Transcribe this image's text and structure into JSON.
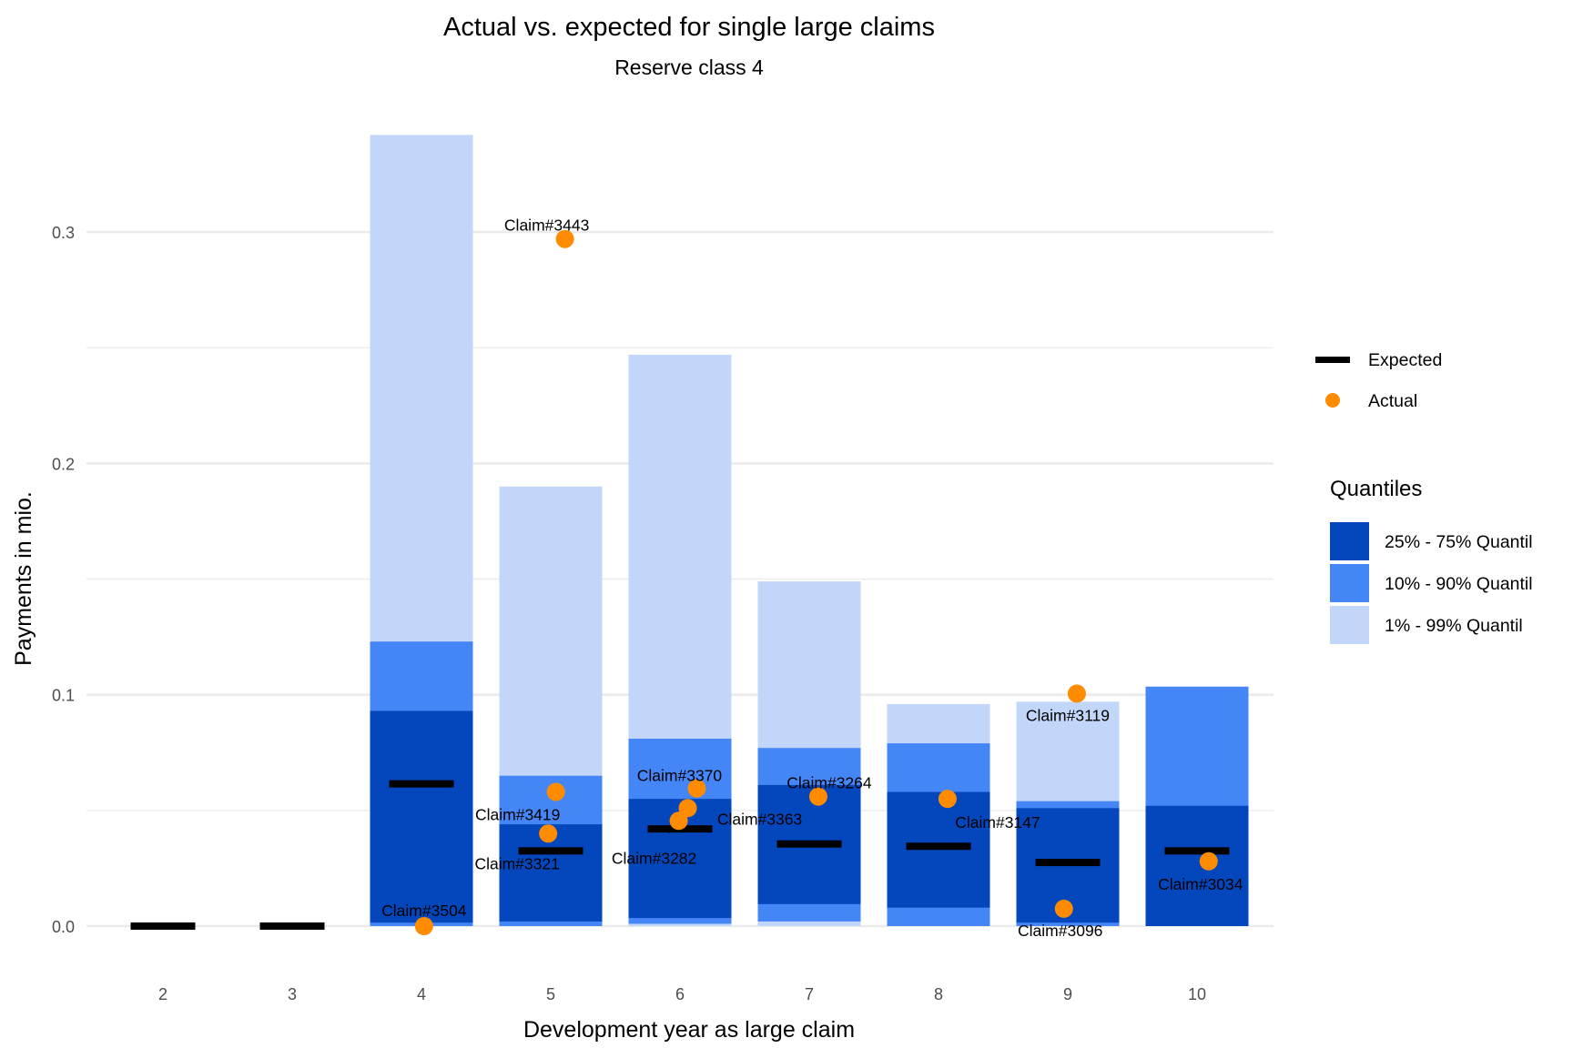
{
  "chart_data": {
    "type": "bar",
    "title": "Actual vs. expected for single large claims",
    "subtitle": "Reserve class 4",
    "xlabel": "Development year as large claim",
    "ylabel": "Payments in mio.",
    "ylim": [
      -0.035,
      0.35
    ],
    "xlim": [
      1.4,
      10.6
    ],
    "grid": true,
    "y_ticks": [
      0.0,
      0.1,
      0.2,
      0.3
    ],
    "y_tick_labels": [
      "0.0",
      "0.1",
      "0.2",
      "0.3"
    ],
    "y_minor_ticks": [
      0.05,
      0.15,
      0.25
    ],
    "categories": [
      2,
      3,
      4,
      5,
      6,
      7,
      8,
      9,
      10
    ],
    "category_labels": [
      "2",
      "3",
      "4",
      "5",
      "6",
      "7",
      "8",
      "9",
      "10"
    ],
    "quantile_bands": [
      {
        "name": "1% - 99% Quantil",
        "color": "#C2D6FA",
        "low": [
          0,
          0,
          0.0,
          0.0,
          0.0,
          0.0,
          0.0,
          0.0,
          0.0
        ],
        "high": [
          0,
          0,
          0.342,
          0.19,
          0.247,
          0.149,
          0.096,
          0.097,
          0.1035
        ]
      },
      {
        "name": "10% - 90% Quantil",
        "color": "#4586F7",
        "low": [
          0,
          0,
          0.0,
          0.0,
          0.001,
          0.002,
          0.0,
          0.0,
          0.0
        ],
        "high": [
          0,
          0,
          0.123,
          0.065,
          0.081,
          0.077,
          0.079,
          0.054,
          0.1035
        ]
      },
      {
        "name": "25% - 75% Quantil",
        "color": "#0447BD",
        "low": [
          0,
          0,
          0.0015,
          0.002,
          0.0035,
          0.0095,
          0.008,
          0.0015,
          0.0
        ],
        "high": [
          0,
          0,
          0.093,
          0.044,
          0.055,
          0.061,
          0.058,
          0.051,
          0.052
        ]
      }
    ],
    "expected": {
      "name": "Expected",
      "color": "#000000",
      "values": [
        0.0,
        0.0,
        0.0615,
        0.0325,
        0.042,
        0.0355,
        0.0345,
        0.0275,
        0.0325
      ]
    },
    "actual": {
      "name": "Actual",
      "color": "#FF8C00",
      "points": [
        {
          "x": 4.02,
          "y": 0.0,
          "label": "Claim#3504"
        },
        {
          "x": 5.11,
          "y": 0.297,
          "label": "Claim#3443"
        },
        {
          "x": 5.04,
          "y": 0.058,
          "label": "Claim#3419"
        },
        {
          "x": 4.98,
          "y": 0.04,
          "label": "Claim#3321"
        },
        {
          "x": 6.13,
          "y": 0.0595,
          "label": "Claim#3370"
        },
        {
          "x": 6.06,
          "y": 0.051,
          "label": "Claim#3363"
        },
        {
          "x": 5.99,
          "y": 0.0455,
          "label": "Claim#3282"
        },
        {
          "x": 7.07,
          "y": 0.056,
          "label": "Claim#3264"
        },
        {
          "x": 8.07,
          "y": 0.055,
          "label": "Claim#3147"
        },
        {
          "x": 9.07,
          "y": 0.1005,
          "label": "Claim#3119"
        },
        {
          "x": 8.97,
          "y": 0.0075,
          "label": "Claim#3096"
        },
        {
          "x": 10.09,
          "y": 0.028,
          "label": "Claim#3034"
        }
      ]
    },
    "legend": {
      "placement": "right",
      "series_items": [
        "Expected",
        "Actual"
      ],
      "quantile_title": "Quantiles",
      "quantile_items": [
        "25% - 75% Quantil",
        "10% - 90% Quantil",
        "1% - 99% Quantil"
      ],
      "quantile_colors": [
        "#0447BD",
        "#4586F7",
        "#C2D6FA"
      ]
    },
    "colors": {
      "grid": "#EBEBEB",
      "tick_text": "#4D4D4D"
    }
  }
}
